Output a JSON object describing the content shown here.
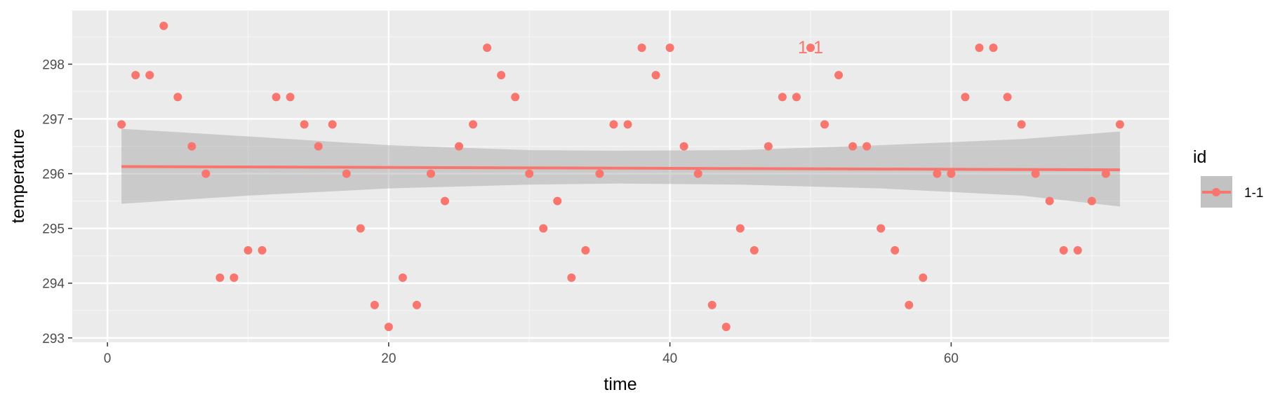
{
  "chart_data": {
    "type": "scatter",
    "xlabel": "time",
    "ylabel": "temperature",
    "xlim": [
      -2.5,
      75.5
    ],
    "ylim": [
      292.92,
      298.98
    ],
    "xticks": [
      0,
      20,
      40,
      60
    ],
    "yticks": [
      293,
      294,
      295,
      296,
      297,
      298
    ],
    "grid": true,
    "legend": {
      "title": "id",
      "entries": [
        "1-1"
      ],
      "placement": "right"
    },
    "annotation": {
      "x": 50,
      "y": 298.3,
      "text": "1-1"
    },
    "series": [
      {
        "name": "1-1",
        "color": "#F8766D",
        "points": [
          [
            1,
            296.9
          ],
          [
            2,
            297.8
          ],
          [
            3,
            297.8
          ],
          [
            4,
            298.7
          ],
          [
            5,
            297.4
          ],
          [
            6,
            296.5
          ],
          [
            7,
            296.0
          ],
          [
            8,
            294.1
          ],
          [
            9,
            294.1
          ],
          [
            10,
            294.6
          ],
          [
            11,
            294.6
          ],
          [
            12,
            297.4
          ],
          [
            13,
            297.4
          ],
          [
            14,
            296.9
          ],
          [
            15,
            296.5
          ],
          [
            16,
            296.9
          ],
          [
            17,
            296.0
          ],
          [
            18,
            295.0
          ],
          [
            19,
            293.6
          ],
          [
            20,
            293.2
          ],
          [
            21,
            294.1
          ],
          [
            22,
            293.6
          ],
          [
            23,
            296.0
          ],
          [
            24,
            295.5
          ],
          [
            25,
            296.5
          ],
          [
            26,
            296.9
          ],
          [
            27,
            298.3
          ],
          [
            28,
            297.8
          ],
          [
            29,
            297.4
          ],
          [
            30,
            296.0
          ],
          [
            31,
            295.0
          ],
          [
            32,
            295.5
          ],
          [
            33,
            294.1
          ],
          [
            34,
            294.6
          ],
          [
            35,
            296.0
          ],
          [
            36,
            296.9
          ],
          [
            37,
            296.9
          ],
          [
            38,
            298.3
          ],
          [
            39,
            297.8
          ],
          [
            40,
            298.3
          ],
          [
            41,
            296.5
          ],
          [
            42,
            296.0
          ],
          [
            43,
            293.6
          ],
          [
            44,
            293.2
          ],
          [
            45,
            295.0
          ],
          [
            46,
            294.6
          ],
          [
            47,
            296.5
          ],
          [
            48,
            297.4
          ],
          [
            49,
            297.4
          ],
          [
            50,
            298.3
          ],
          [
            51,
            296.9
          ],
          [
            52,
            297.8
          ],
          [
            53,
            296.5
          ],
          [
            54,
            296.5
          ],
          [
            55,
            295.0
          ],
          [
            56,
            294.6
          ],
          [
            57,
            293.6
          ],
          [
            58,
            294.1
          ],
          [
            59,
            296.0
          ],
          [
            60,
            296.0
          ],
          [
            61,
            297.4
          ],
          [
            62,
            298.3
          ],
          [
            63,
            298.3
          ],
          [
            64,
            297.4
          ],
          [
            65,
            296.9
          ],
          [
            66,
            296.0
          ],
          [
            67,
            295.5
          ],
          [
            68,
            294.6
          ],
          [
            69,
            294.6
          ],
          [
            70,
            295.5
          ],
          [
            71,
            296.0
          ],
          [
            72,
            296.9
          ]
        ],
        "trend": {
          "x": [
            1,
            72
          ],
          "y": [
            296.13,
            296.07
          ]
        },
        "confidence_band": {
          "x": [
            1,
            10,
            20,
            30,
            36.5,
            45,
            55,
            65,
            72
          ],
          "lower": [
            295.45,
            295.6,
            295.73,
            295.8,
            295.82,
            295.8,
            295.73,
            295.6,
            295.4
          ],
          "upper": [
            296.82,
            296.68,
            296.52,
            296.43,
            296.42,
            296.43,
            296.52,
            296.63,
            296.77
          ]
        }
      }
    ]
  }
}
